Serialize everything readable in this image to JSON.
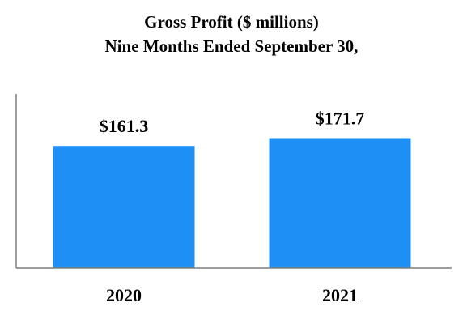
{
  "chart_data": {
    "type": "bar",
    "title": "Gross Profit ($ millions)",
    "subtitle": "Nine Months Ended September 30,",
    "categories": [
      "2020",
      "2021"
    ],
    "values": [
      161.3,
      171.7
    ],
    "value_labels": [
      "$161.3",
      "$171.7"
    ],
    "xlabel": "",
    "ylabel": "",
    "ylim": [
      0,
      230
    ],
    "grid": false,
    "legend": "none",
    "bar_color": "#1e90f5",
    "axis_color": "#7f7f7f"
  }
}
